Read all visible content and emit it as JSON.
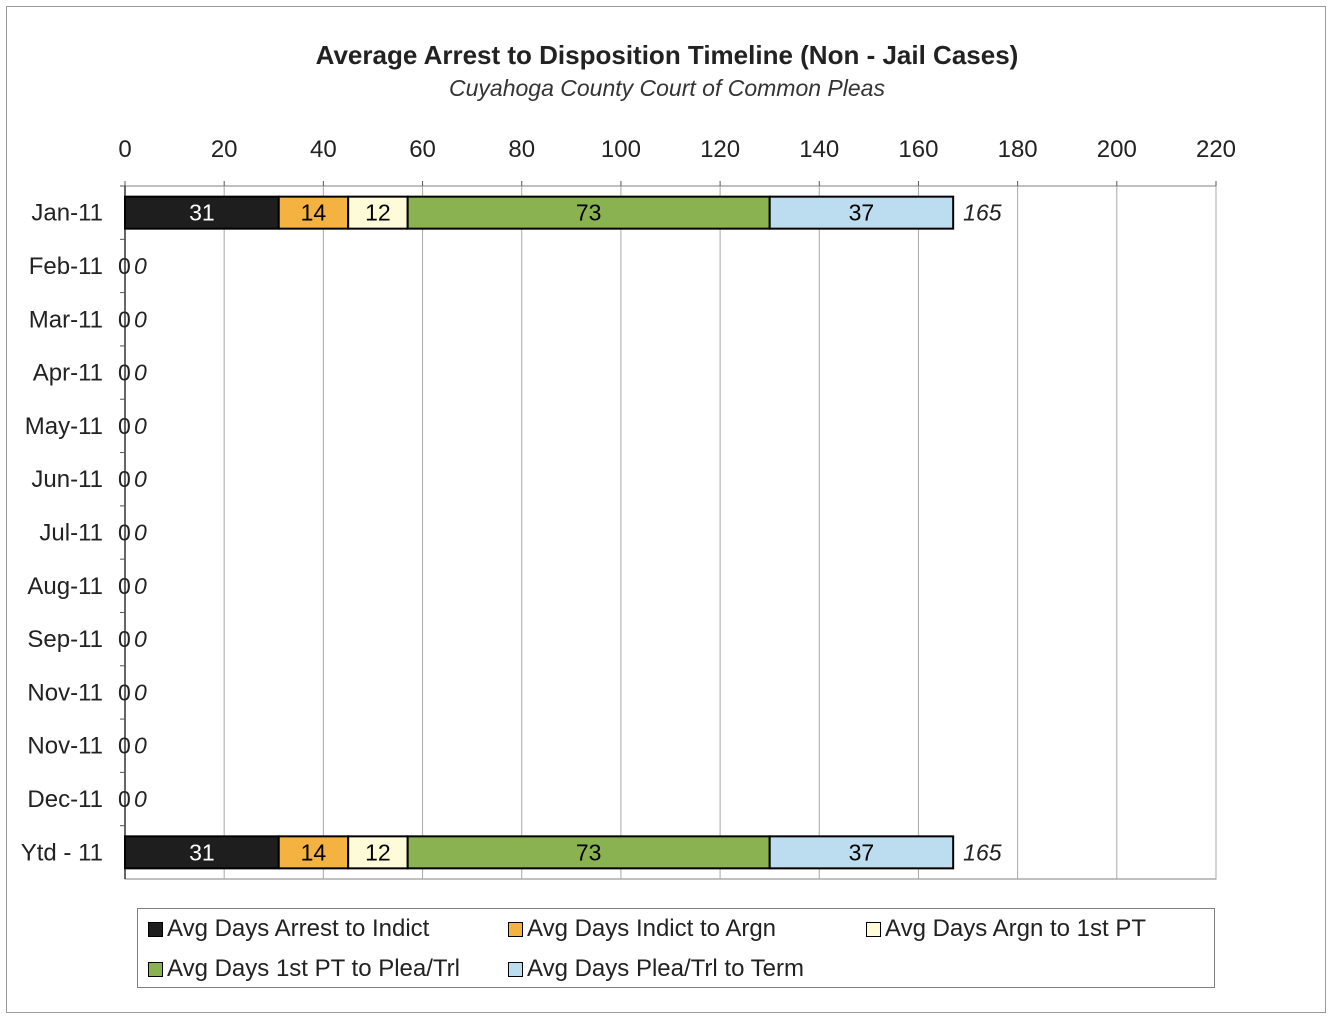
{
  "chart_data": {
    "type": "bar",
    "orientation": "horizontal",
    "stacked": true,
    "title": "Average Arrest to Disposition Timeline (Non - Jail Cases)",
    "subtitle": "Cuyahoga County Court of Common Pleas",
    "xlim": [
      0,
      220
    ],
    "x_ticks": [
      "0",
      "20",
      "40",
      "60",
      "80",
      "100",
      "120",
      "140",
      "160",
      "180",
      "200",
      "220"
    ],
    "x_tick_values": [
      0,
      20,
      40,
      60,
      80,
      100,
      120,
      140,
      160,
      180,
      200,
      220
    ],
    "x_axis_position": "top",
    "grid": true,
    "legend_position": "bottom",
    "categories": [
      "Jan-11",
      "Feb-11",
      "Mar-11",
      "Apr-11",
      "May-11",
      "Jun-11",
      "Jul-11",
      "Aug-11",
      "Sep-11",
      "Nov-11",
      "Nov-11",
      "Dec-11",
      "Ytd - 11"
    ],
    "series": [
      {
        "name": "Avg Days Arrest to Indict",
        "color": "#1e1e1e",
        "label_color": "#ffffff",
        "values": [
          31,
          0,
          0,
          0,
          0,
          0,
          0,
          0,
          0,
          0,
          0,
          0,
          31
        ]
      },
      {
        "name": "Avg Days Indict to Argn",
        "color": "#f4b340",
        "label_color": "#000000",
        "values": [
          14,
          0,
          0,
          0,
          0,
          0,
          0,
          0,
          0,
          0,
          0,
          0,
          14
        ]
      },
      {
        "name": "Avg Days Argn to 1st PT",
        "color": "#fdfbd8",
        "label_color": "#000000",
        "values": [
          12,
          0,
          0,
          0,
          0,
          0,
          0,
          0,
          0,
          0,
          0,
          0,
          12
        ]
      },
      {
        "name": "Avg Days 1st PT to Plea/Trl",
        "color": "#8ab250",
        "label_color": "#000000",
        "values": [
          73,
          0,
          0,
          0,
          0,
          0,
          0,
          0,
          0,
          0,
          0,
          0,
          73
        ]
      },
      {
        "name": "Avg Days Plea/Trl to Term",
        "color": "#bcdcf0",
        "label_color": "#000000",
        "values": [
          37,
          0,
          0,
          0,
          0,
          0,
          0,
          0,
          0,
          0,
          0,
          0,
          37
        ]
      }
    ],
    "totals": [
      165,
      0,
      0,
      0,
      0,
      0,
      0,
      0,
      0,
      0,
      0,
      0,
      165
    ],
    "zero_bar_labels": [
      "0",
      "0",
      "0",
      "0",
      "0",
      "0",
      "0",
      "0",
      "0",
      "0",
      "0"
    ]
  }
}
